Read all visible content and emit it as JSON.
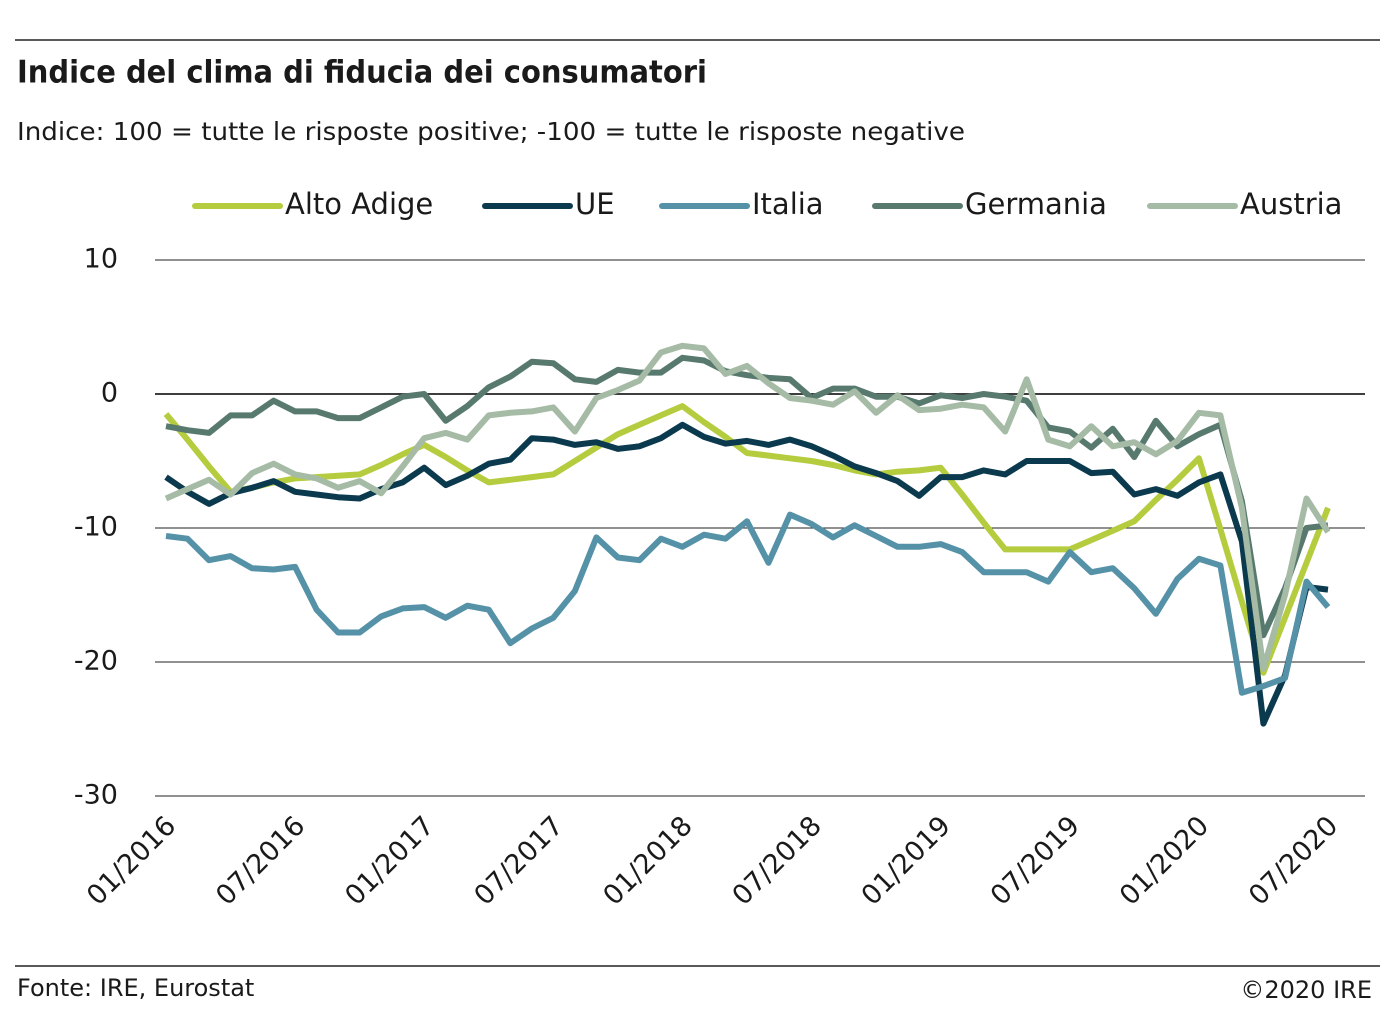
{
  "chart_data": {
    "type": "line",
    "title": "Indice del clima di fiducia dei consumatori",
    "subtitle": "Indice: 100 = tutte le risposte positive; -100 =  tutte le risposte negative",
    "source": "Fonte: IRE, Eurostat",
    "copyright": "©2020 IRE",
    "categories": [
      "01/2016",
      null,
      null,
      null,
      null,
      null,
      "07/2016",
      null,
      null,
      null,
      null,
      null,
      "01/2017",
      null,
      null,
      null,
      null,
      null,
      "07/2017",
      null,
      null,
      null,
      null,
      null,
      "01/2018",
      null,
      null,
      null,
      null,
      null,
      "07/2018",
      null,
      null,
      null,
      null,
      null,
      "01/2019",
      null,
      null,
      null,
      null,
      null,
      "07/2019",
      null,
      null,
      null,
      null,
      null,
      "01/2020",
      null,
      null,
      null,
      null,
      null,
      "07/2020"
    ],
    "ylim": [
      -30,
      10
    ],
    "yticks": [
      10,
      0,
      -10,
      -20,
      -30
    ],
    "grid": true,
    "legend": "top",
    "series": [
      {
        "name": "Alto Adige",
        "color": "#b5cc3e",
        "values": [
          -1.5,
          -3.4,
          -5.4,
          -7.3,
          -7.0,
          -6.6,
          -6.3,
          -6.2,
          -6.1,
          -6.0,
          -5.3,
          -4.5,
          -3.8,
          -4.7,
          -5.7,
          -6.6,
          -6.4,
          -6.2,
          -6.0,
          -5.0,
          -4.0,
          -3.0,
          -2.3,
          -1.6,
          -0.9,
          -2.1,
          -3.2,
          -4.4,
          -4.6,
          -4.8,
          -5.0,
          -5.3,
          -5.7,
          -6.0,
          -5.8,
          -5.7,
          -5.5,
          -7.5,
          -9.6,
          -11.6,
          -11.6,
          -11.6,
          -11.6,
          -10.9,
          -10.2,
          -9.5,
          -7.9,
          -6.4,
          -4.8,
          -10.1,
          -15.5,
          -20.8,
          -16.7,
          -12.6,
          -8.5
        ]
      },
      {
        "name": "UE",
        "color": "#0b3a4e",
        "values": [
          -6.2,
          -7.3,
          -8.2,
          -7.4,
          -7.0,
          -6.5,
          -7.3,
          -7.5,
          -7.7,
          -7.8,
          -7.1,
          -6.6,
          -5.5,
          -6.8,
          -6.1,
          -5.2,
          -4.9,
          -3.3,
          -3.4,
          -3.8,
          -3.6,
          -4.1,
          -3.9,
          -3.3,
          -2.3,
          -3.2,
          -3.7,
          -3.5,
          -3.8,
          -3.4,
          -3.9,
          -4.6,
          -5.4,
          -5.9,
          -6.5,
          -7.6,
          -6.2,
          -6.2,
          -5.7,
          -6.0,
          -5.0,
          -5.0,
          -5.0,
          -5.9,
          -5.8,
          -7.5,
          -7.1,
          -7.6,
          -6.6,
          -6.0,
          -11.0,
          -24.6,
          -21.0,
          -14.4,
          -14.6
        ]
      },
      {
        "name": "Italia",
        "color": "#5592a8",
        "values": [
          -10.6,
          -10.8,
          -12.4,
          -12.1,
          -13.0,
          -13.1,
          -12.9,
          -16.1,
          -17.8,
          -17.8,
          -16.6,
          -16.0,
          -15.9,
          -16.7,
          -15.8,
          -16.1,
          -18.6,
          -17.5,
          -16.7,
          -14.7,
          -10.7,
          -12.2,
          -12.4,
          -10.8,
          -11.4,
          -10.5,
          -10.8,
          -9.5,
          -12.6,
          -9.0,
          -9.7,
          -10.7,
          -9.8,
          -10.6,
          -11.4,
          -11.4,
          -11.2,
          -11.8,
          -13.3,
          -13.3,
          -13.3,
          -14.0,
          -11.8,
          -13.3,
          -13.0,
          -14.5,
          -16.4,
          -13.8,
          -12.3,
          -12.8,
          -22.3,
          -21.8,
          -21.2,
          -14.0,
          -15.9
        ]
      },
      {
        "name": "Germania",
        "color": "#587a6e",
        "values": [
          -2.4,
          -2.7,
          -2.9,
          -1.6,
          -1.6,
          -0.5,
          -1.3,
          -1.3,
          -1.8,
          -1.8,
          -1.0,
          -0.2,
          0.0,
          -2.0,
          -0.9,
          0.5,
          1.3,
          2.4,
          2.3,
          1.1,
          0.9,
          1.8,
          1.6,
          1.6,
          2.7,
          2.5,
          1.7,
          1.4,
          1.2,
          1.1,
          -0.3,
          0.4,
          0.4,
          -0.2,
          -0.2,
          -0.7,
          -0.1,
          -0.3,
          0.0,
          -0.2,
          -0.5,
          -2.5,
          -2.8,
          -4.0,
          -2.6,
          -4.7,
          -2.0,
          -3.9,
          -3.0,
          -2.3,
          -8.0,
          -18.0,
          -14.5,
          -10.0,
          -9.8
        ]
      },
      {
        "name": "Austria",
        "color": "#a6bba6",
        "values": [
          -7.8,
          -7.1,
          -6.4,
          -7.5,
          -5.9,
          -5.2,
          -6.0,
          -6.3,
          -7.0,
          -6.5,
          -7.4,
          -5.4,
          -3.3,
          -2.9,
          -3.4,
          -1.6,
          -1.4,
          -1.3,
          -1.0,
          -2.8,
          -0.3,
          0.3,
          1.0,
          3.1,
          3.6,
          3.4,
          1.5,
          2.1,
          0.8,
          -0.3,
          -0.5,
          -0.8,
          0.2,
          -1.4,
          -0.1,
          -1.2,
          -1.1,
          -0.8,
          -1.0,
          -2.8,
          1.1,
          -3.4,
          -3.9,
          -2.4,
          -3.9,
          -3.6,
          -4.5,
          -3.5,
          -1.4,
          -1.6,
          -8.5,
          -20.5,
          -15.0,
          -7.8,
          -10.3
        ]
      }
    ]
  }
}
